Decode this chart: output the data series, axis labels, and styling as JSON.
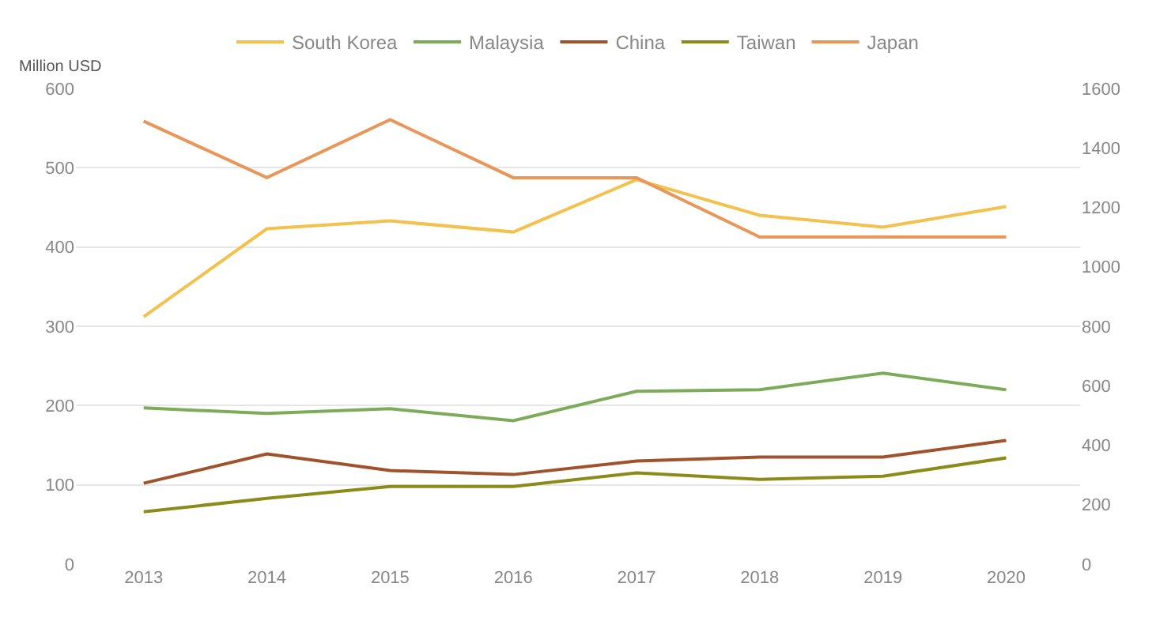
{
  "chart_data": {
    "type": "line",
    "ylabel": "Million USD",
    "categories": [
      "2013",
      "2014",
      "2015",
      "2016",
      "2017",
      "2018",
      "2019",
      "2020"
    ],
    "series": [
      {
        "name": "South Korea",
        "color": "#f2c14e",
        "values": [
          312,
          423,
          433,
          419,
          485,
          440,
          425,
          451
        ]
      },
      {
        "name": "Malaysia",
        "color": "#7cab5a",
        "values": [
          197,
          190,
          196,
          181,
          218,
          220,
          241,
          220
        ]
      },
      {
        "name": "China",
        "color": "#a0522d",
        "values": [
          102,
          139,
          118,
          113,
          130,
          135,
          135,
          156
        ]
      },
      {
        "name": "Taiwan",
        "color": "#8b8b1a",
        "values": [
          66,
          83,
          98,
          98,
          115,
          107,
          111,
          134
        ]
      },
      {
        "name": "Japan",
        "color": "#e8965a",
        "axis": "y2",
        "values": [
          1490,
          1300,
          1495,
          1300,
          1300,
          1100,
          1100,
          1100
        ]
      }
    ],
    "ylim": [
      0,
      600
    ],
    "yticks": [
      0,
      100,
      200,
      300,
      400,
      500,
      600
    ],
    "y2lim": [
      0,
      1600
    ],
    "y2ticks": [
      0,
      200,
      400,
      600,
      800,
      1000,
      1200,
      1400,
      1600
    ],
    "grid": "y",
    "legend": "top",
    "marker": "none",
    "line_style": "solid"
  }
}
